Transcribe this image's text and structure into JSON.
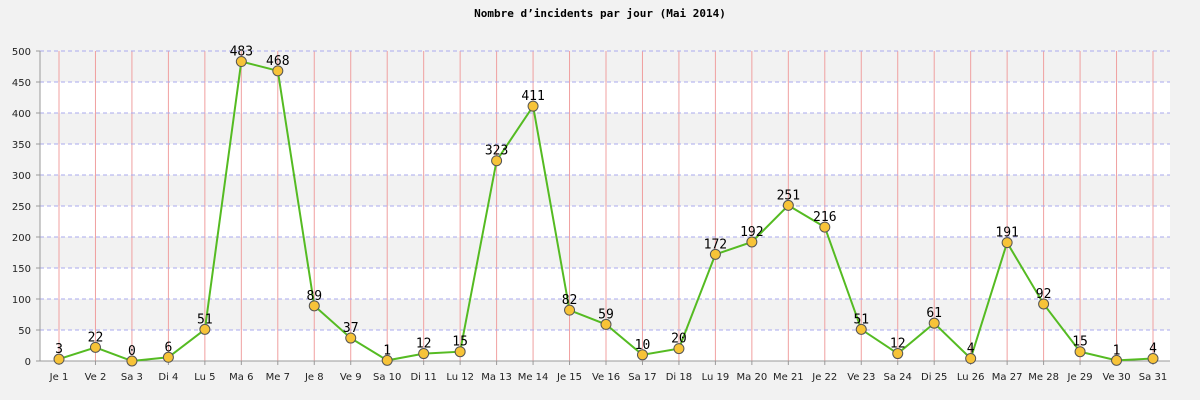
{
  "chart_data": {
    "type": "line",
    "title": "Nombre d’incidents par jour (Mai 2014)",
    "xlabel": "",
    "ylabel": "",
    "categories": [
      "Je 1",
      "Ve 2",
      "Sa 3",
      "Di 4",
      "Lu 5",
      "Ma 6",
      "Me 7",
      "Je 8",
      "Ve 9",
      "Sa 10",
      "Di 11",
      "Lu 12",
      "Ma 13",
      "Me 14",
      "Je 15",
      "Ve 16",
      "Sa 17",
      "Di 18",
      "Lu 19",
      "Ma 20",
      "Me 21",
      "Je 22",
      "Ve 23",
      "Sa 24",
      "Di 25",
      "Lu 26",
      "Ma 27",
      "Me 28",
      "Je 29",
      "Ve 30",
      "Sa 31"
    ],
    "values": [
      3,
      22,
      0,
      6,
      51,
      483,
      468,
      89,
      37,
      1,
      12,
      15,
      323,
      411,
      82,
      59,
      10,
      20,
      172,
      192,
      251,
      216,
      51,
      12,
      61,
      4,
      191,
      92,
      15,
      1,
      4
    ],
    "ylim": [
      0,
      500
    ],
    "yticks": [
      0,
      50,
      100,
      150,
      200,
      250,
      300,
      350,
      400,
      450,
      500
    ],
    "grid": true,
    "legend": "none",
    "colors": {
      "line": "#55bb22",
      "marker_fill": "#f7c338",
      "marker_stroke": "#555555",
      "vgrid": "#f0a0a0",
      "hgrid": "#aaaaee",
      "band": "#f2f2f2",
      "plot_bg": "#ffffff"
    }
  }
}
